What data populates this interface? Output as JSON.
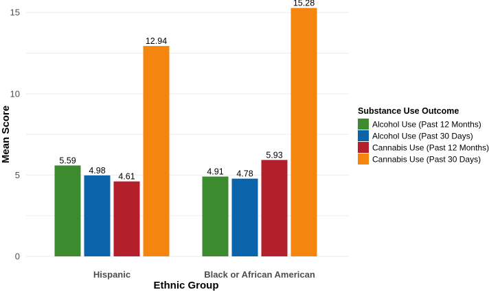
{
  "chart_data": {
    "type": "bar",
    "title": "",
    "xlabel": "Ethnic Group",
    "ylabel": "Mean Score",
    "categories": [
      "Hispanic",
      "Black or African American"
    ],
    "series": [
      {
        "name": "Alcohol Use (Past 12 Months)",
        "color": "#3d8b2f",
        "values": [
          5.59,
          4.91
        ],
        "labels": [
          "5.59",
          "4.91"
        ]
      },
      {
        "name": "Alcohol Use (Past 30 Days)",
        "color": "#0a63ab",
        "values": [
          4.98,
          4.78
        ],
        "labels": [
          "4.98",
          "4.78"
        ]
      },
      {
        "name": "Cannabis Use (Past 12 Months)",
        "color": "#b41f2c",
        "values": [
          4.61,
          5.93
        ],
        "labels": [
          "4.61",
          "5.93"
        ]
      },
      {
        "name": "Cannabis Use (Past 30 Days)",
        "color": "#f4850e",
        "values": [
          12.94,
          15.28
        ],
        "labels": [
          "12.94",
          "15.28"
        ]
      }
    ],
    "y_ticks": [
      0,
      5,
      10,
      15
    ],
    "y_tick_labels": [
      "0",
      "5",
      "10",
      "15"
    ],
    "ylim": [
      0,
      15.6
    ],
    "grid": true,
    "legend": {
      "title": "Substance Use Outcome",
      "position": "right"
    }
  }
}
